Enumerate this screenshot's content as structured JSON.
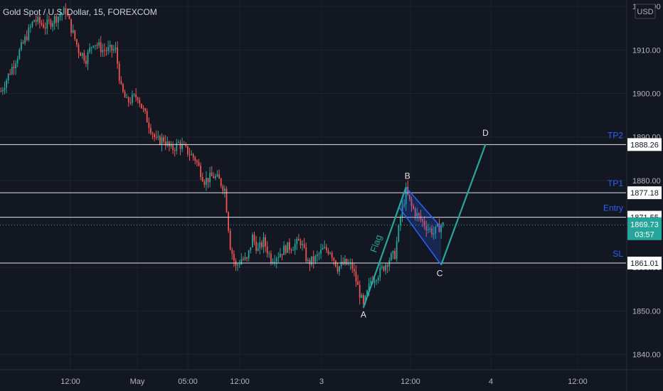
{
  "chart_data": {
    "type": "candlestick",
    "title": "Gold Spot / U.S. Dollar, 15, FOREXCOM",
    "currency": "USD",
    "x_ticks": [
      "12:00",
      "May",
      "05:00",
      "12:00",
      "3",
      "12:00",
      "4",
      "12:00"
    ],
    "y_ticks": [
      1840,
      1850,
      1860,
      1870,
      1880,
      1890,
      1900,
      1910,
      1920
    ],
    "y_tick_labels": [
      "1840.00",
      "1850.00",
      "1860.00",
      "1870.00",
      "1880.00",
      "1890.00",
      "1900.00",
      "1910.00",
      "1920.00"
    ],
    "ylim": [
      1836.5,
      1921.5
    ],
    "up_color": "#26a69a",
    "down_color": "#ef5350",
    "levels": [
      {
        "name": "TP2",
        "value": 1888.26,
        "label": "1888.26"
      },
      {
        "name": "TP1",
        "value": 1877.18,
        "label": "1877.18"
      },
      {
        "name": "Entry",
        "value": 1871.55,
        "label": "1871.55"
      },
      {
        "name": "SL",
        "value": 1861.01,
        "label": "1861.01"
      }
    ],
    "current_price": {
      "value": 1869.73,
      "label": "1869.73",
      "countdown": "03:57",
      "color": "#26a69a"
    },
    "pattern": {
      "flag_label": "Flag",
      "points": [
        {
          "name": "A",
          "bar": 196,
          "price": 1850.8
        },
        {
          "name": "B",
          "bar": 219,
          "price": 1878.4
        },
        {
          "name": "C",
          "bar": 238,
          "price": 1860.6
        },
        {
          "name": "D",
          "bar": 262,
          "price": 1888.3
        }
      ],
      "channel_upper": [
        {
          "bar": 219,
          "price": 1878.4
        },
        {
          "bar": 238,
          "price": 1869.2
        }
      ],
      "channel_lower": [
        {
          "bar": 215,
          "price": 1874.0
        },
        {
          "bar": 238,
          "price": 1860.6
        }
      ],
      "channel_color": "#2962ff",
      "impulse_color": "#26a69a"
    },
    "bar_count": 240,
    "anchors": [
      [
        0,
        1900.5
      ],
      [
        6,
        1906.0
      ],
      [
        12,
        1911.5
      ],
      [
        18,
        1917.0
      ],
      [
        24,
        1915.5
      ],
      [
        30,
        1917.5
      ],
      [
        35,
        1919.0
      ],
      [
        38,
        1915.0
      ],
      [
        42,
        1910.0
      ],
      [
        46,
        1908.0
      ],
      [
        50,
        1912.0
      ],
      [
        55,
        1910.0
      ],
      [
        58,
        1910.0
      ],
      [
        62,
        1910.0
      ],
      [
        65,
        1901.0
      ],
      [
        68,
        1898.0
      ],
      [
        74,
        1899.5
      ],
      [
        76,
        1897.0
      ],
      [
        80,
        1893.0
      ],
      [
        84,
        1889.0
      ],
      [
        88,
        1889.5
      ],
      [
        92,
        1887.0
      ],
      [
        96,
        1888.5
      ],
      [
        100,
        1887.0
      ],
      [
        105,
        1885.0
      ],
      [
        110,
        1880.0
      ],
      [
        115,
        1881.0
      ],
      [
        118,
        1880.0
      ],
      [
        121,
        1878.0
      ],
      [
        124,
        1865.0
      ],
      [
        127,
        1860.0
      ],
      [
        130,
        1862.0
      ],
      [
        133,
        1861.5
      ],
      [
        136,
        1867.0
      ],
      [
        139,
        1864.0
      ],
      [
        142,
        1866.0
      ],
      [
        146,
        1862.0
      ],
      [
        150,
        1863.0
      ],
      [
        154,
        1864.5
      ],
      [
        158,
        1865.0
      ],
      [
        162,
        1866.0
      ],
      [
        166,
        1861.0
      ],
      [
        170,
        1862.0
      ],
      [
        174,
        1864.0
      ],
      [
        178,
        1864.0
      ],
      [
        182,
        1860.0
      ],
      [
        186,
        1861.0
      ],
      [
        190,
        1860.0
      ],
      [
        194,
        1854.0
      ],
      [
        196,
        1851.0
      ],
      [
        200,
        1857.0
      ],
      [
        205,
        1859.0
      ],
      [
        210,
        1862.0
      ],
      [
        213,
        1863.0
      ],
      [
        216,
        1871.5
      ],
      [
        219,
        1877.5
      ],
      [
        222,
        1874.0
      ],
      [
        225,
        1872.0
      ],
      [
        228,
        1870.5
      ],
      [
        231,
        1869.0
      ],
      [
        234,
        1868.0
      ],
      [
        238,
        1869.73
      ]
    ]
  }
}
